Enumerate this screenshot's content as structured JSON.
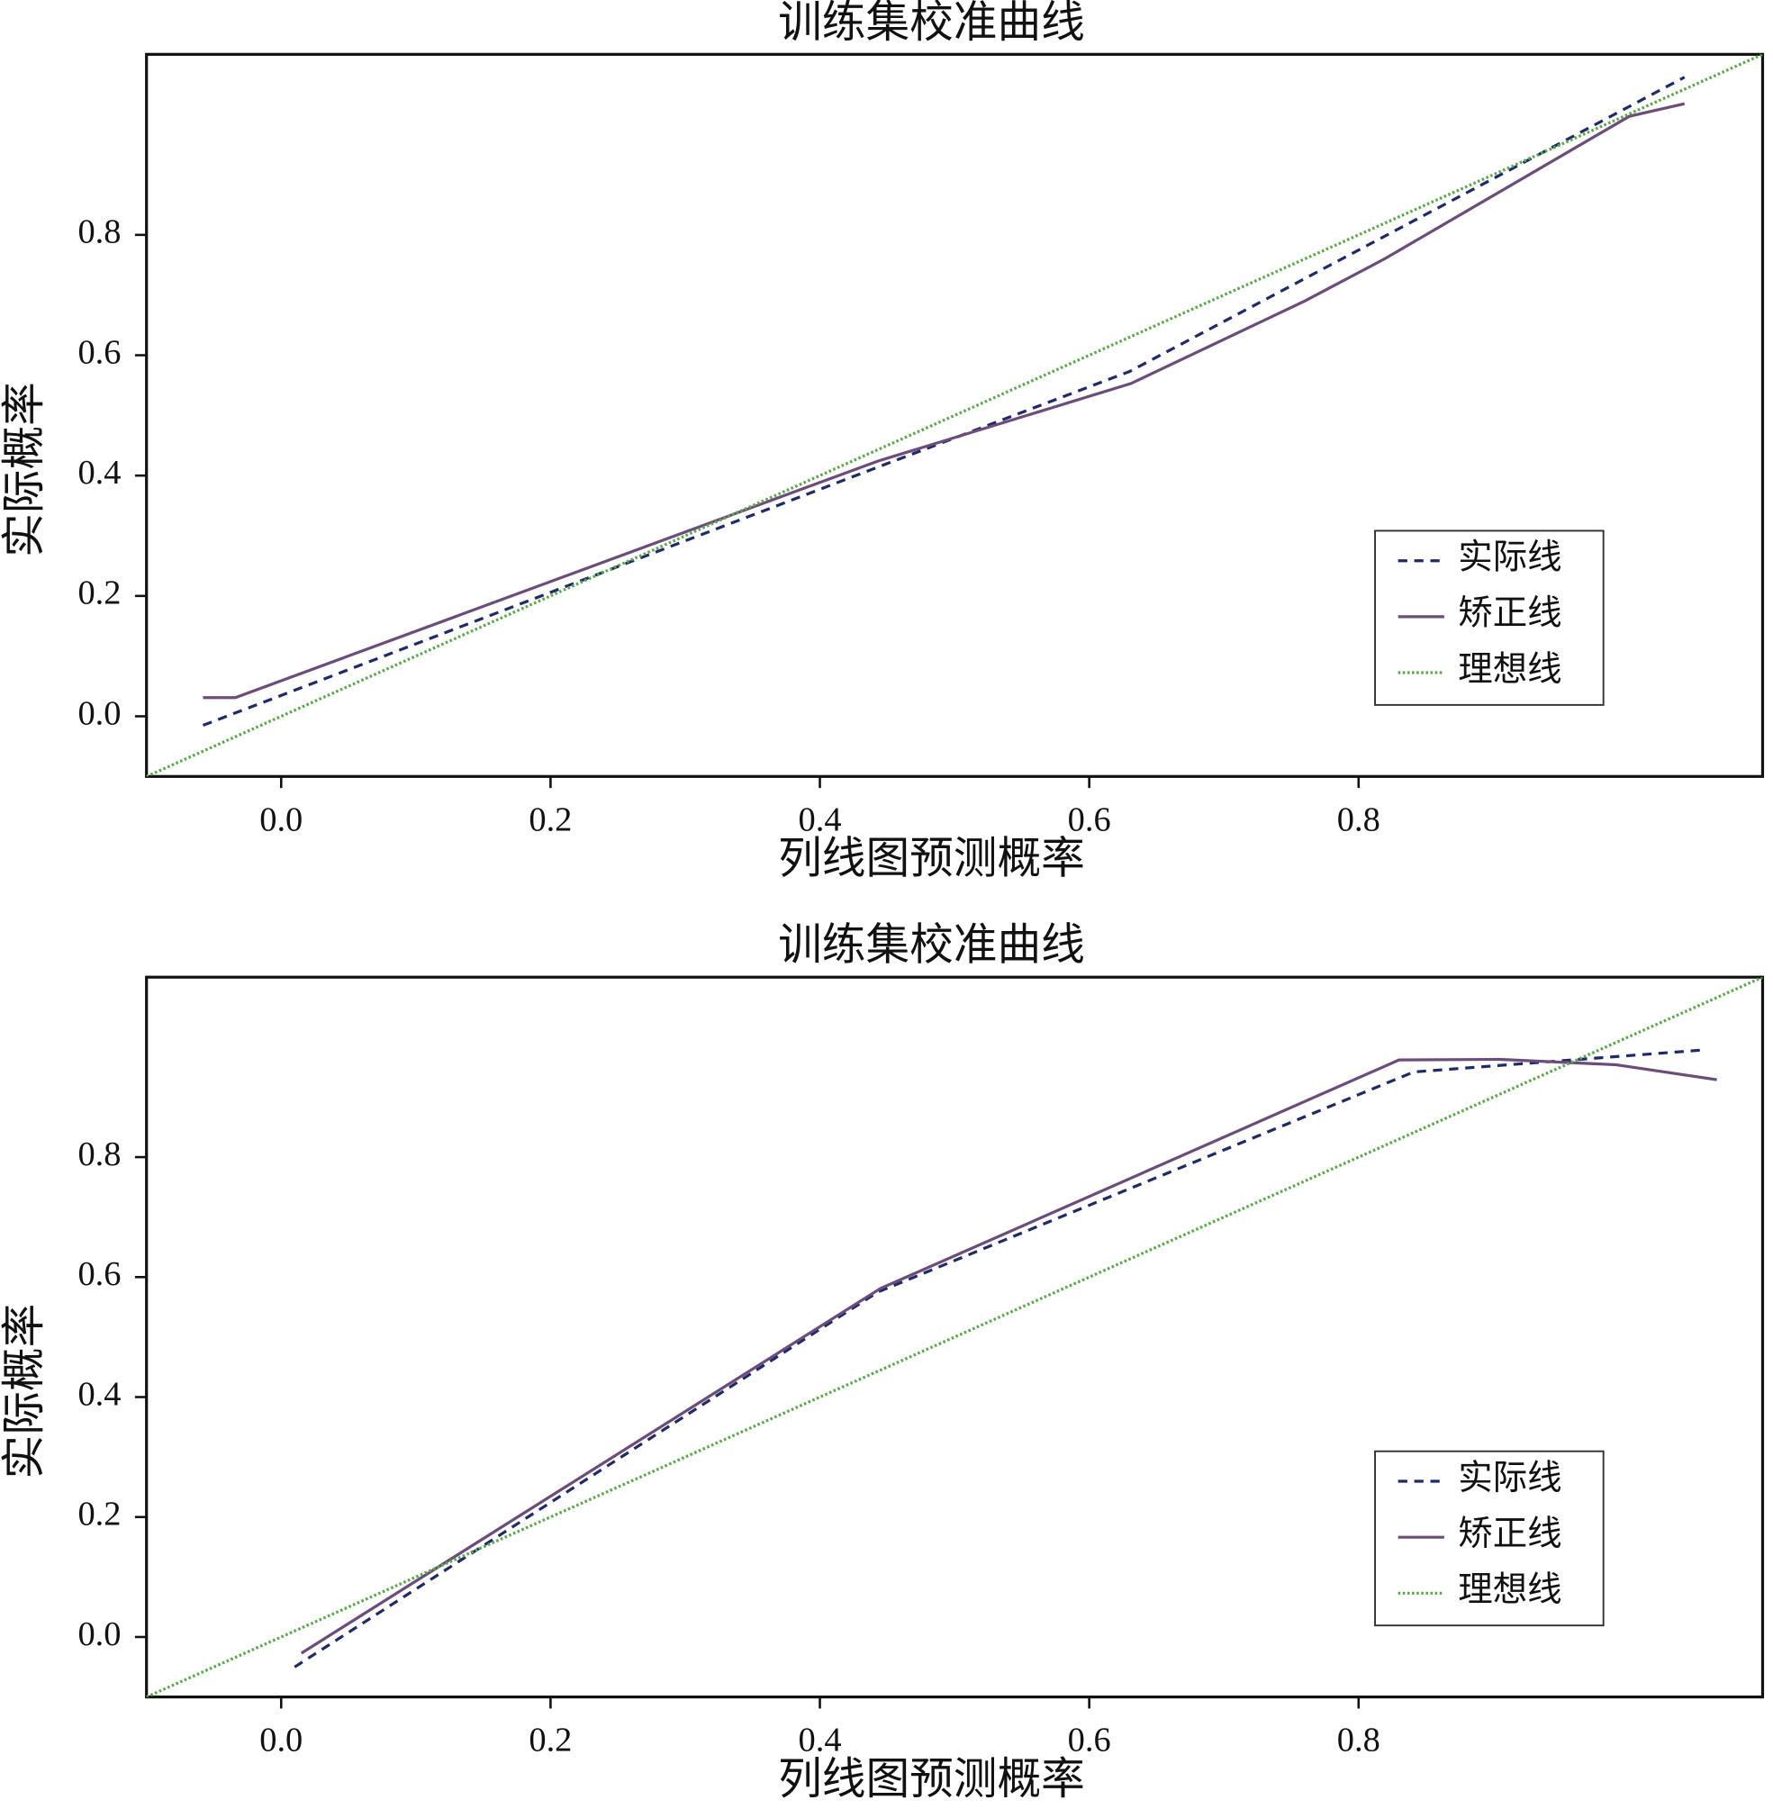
{
  "chart_data": [
    {
      "type": "line",
      "title": "训练集校准曲线",
      "xlabel": "列线图预测概率",
      "ylabel": "实际概率",
      "xlim": [
        -0.1,
        1.1
      ],
      "ylim": [
        -0.1,
        1.1
      ],
      "xticks": [
        {
          "value": 0,
          "label": "0.0"
        },
        0.2,
        0.4,
        0.6,
        0.8
      ],
      "yticks": [
        {
          "value": 0,
          "label": "0.0"
        },
        0.2,
        0.4,
        0.6,
        0.8
      ],
      "legend": "lower right",
      "series": [
        {
          "name": "实际线",
          "color": "#1f2a6b",
          "linestyle": "dashed",
          "x": [
            -0.058,
            0.45,
            0.63,
            1.042
          ],
          "values": [
            -0.015,
            0.42,
            0.573,
            1.062
          ]
        },
        {
          "name": "矫正线",
          "color": "#6b4c7a",
          "linestyle": "solid",
          "x": [
            -0.058,
            -0.034,
            0.443,
            0.631,
            0.76,
            0.82,
            1.001,
            1.042
          ],
          "values": [
            0.031,
            0.031,
            0.424,
            0.553,
            0.69,
            0.761,
            0.997,
            1.018
          ]
        },
        {
          "name": "理想线",
          "color": "#5aa84a",
          "linestyle": "dotted",
          "x": [
            -0.1,
            1.1
          ],
          "values": [
            -0.1,
            1.1
          ]
        }
      ]
    },
    {
      "type": "line",
      "title": "训练集校准曲线",
      "xlabel": "列线图预测概率",
      "ylabel": "实际概率",
      "xlim": [
        -0.1,
        1.1
      ],
      "ylim": [
        -0.1,
        1.1
      ],
      "xticks": [
        {
          "value": 0,
          "label": "0.0"
        },
        0.2,
        0.4,
        0.6,
        0.8
      ],
      "yticks": [
        {
          "value": 0,
          "label": "0.0"
        },
        0.2,
        0.4,
        0.6,
        0.8
      ],
      "legend": "lower right",
      "series": [
        {
          "name": "实际线",
          "color": "#1f2a6b",
          "linestyle": "dashed",
          "x": [
            0.01,
            0.443,
            0.841,
            1.058
          ],
          "values": [
            -0.05,
            0.575,
            0.942,
            0.979
          ]
        },
        {
          "name": "矫正线",
          "color": "#6b4c7a",
          "linestyle": "solid",
          "x": [
            0.015,
            0.445,
            0.83,
            0.905,
            0.991,
            1.066
          ],
          "values": [
            -0.027,
            0.581,
            0.962,
            0.963,
            0.954,
            0.929
          ]
        },
        {
          "name": "理想线",
          "color": "#5aa84a",
          "linestyle": "dotted",
          "x": [
            -0.1,
            1.1
          ],
          "values": [
            -0.1,
            1.1
          ]
        }
      ]
    }
  ]
}
